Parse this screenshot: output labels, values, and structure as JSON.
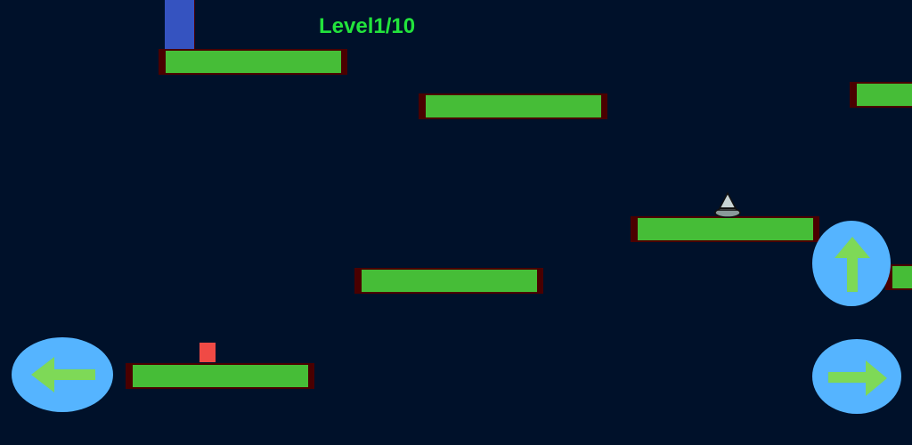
{
  "hud": {
    "level_text": "Level1/10"
  },
  "colors": {
    "background": "#00112a",
    "platform": "#46bd37",
    "platform_edge": "#4a0000",
    "player": "#3553c0",
    "enemy": "#f04a45",
    "button": "#55b4ff",
    "button_arrow": "#7ed957",
    "level_text": "#22e33c"
  },
  "controls": {
    "left": {
      "icon": "arrow-left-icon"
    },
    "up": {
      "icon": "arrow-up-icon"
    },
    "right": {
      "icon": "arrow-right-icon"
    }
  },
  "entities": {
    "player": "blue-block",
    "enemy": "red-square",
    "hazard": "spike"
  }
}
